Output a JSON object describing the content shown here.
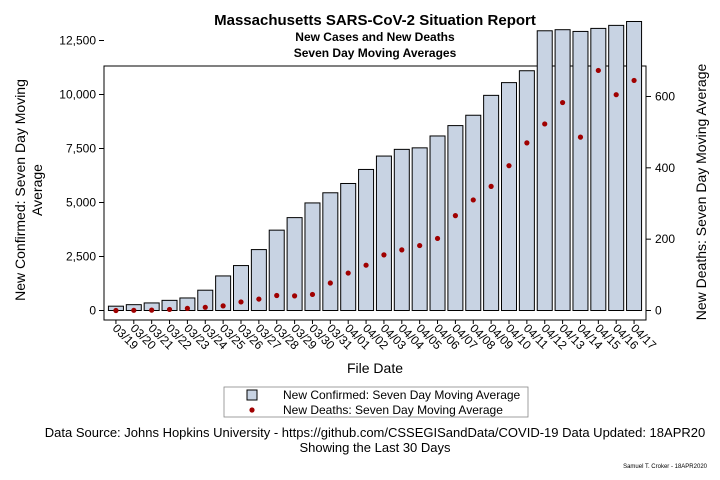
{
  "chart_data": {
    "type": "bar",
    "title": "Massachusetts SARS-CoV-2 Situation Report",
    "subtitle1": "New Cases and New Deaths",
    "subtitle2": "Seven Day Moving Averages",
    "xlabel": "File Date",
    "ylabel_left": "New Confirmed: Seven Day Moving Average",
    "ylabel_left_line1": "New Confirmed: Seven Day Moving",
    "ylabel_left_line2": "Average",
    "ylabel_right": "New Deaths: Seven Day Moving Average",
    "categories": [
      "03/19",
      "03/20",
      "03/21",
      "03/22",
      "03/23",
      "03/24",
      "03/25",
      "03/26",
      "03/27",
      "03/28",
      "03/29",
      "03/30",
      "03/31",
      "04/01",
      "04/02",
      "04/03",
      "04/04",
      "04/05",
      "04/06",
      "04/07",
      "04/08",
      "04/09",
      "04/10",
      "04/11",
      "04/12",
      "04/13",
      "04/14",
      "04/15",
      "04/16",
      "04/17"
    ],
    "series": [
      {
        "name": "New Confirmed: Seven Day Moving Average",
        "type": "bar",
        "axis": "left",
        "color": "#c8d3e3",
        "values": [
          200,
          270,
          350,
          470,
          580,
          940,
          1600,
          2080,
          2820,
          3720,
          4300,
          4980,
          5450,
          5880,
          6530,
          7150,
          7460,
          7530,
          8080,
          8560,
          9040,
          9960,
          10550,
          11100,
          12950,
          13000,
          12920,
          13060,
          13200,
          13380
        ]
      },
      {
        "name": "New Deaths: Seven Day Moving Average",
        "type": "scatter",
        "axis": "right",
        "color": "#a00000",
        "values": [
          0,
          0.5,
          1,
          3,
          6,
          9,
          13,
          24,
          32,
          42,
          41,
          45,
          77,
          105,
          127,
          156,
          170,
          182,
          202,
          266,
          310,
          348,
          406,
          470,
          523,
          583,
          486,
          673,
          605,
          645
        ]
      }
    ],
    "ylim_left": [
      0,
      14000
    ],
    "yticks_left": [
      0,
      2500,
      5000,
      7500,
      10000,
      12500
    ],
    "yticks_left_labels": [
      "0",
      "2,500",
      "5,000",
      "7,500",
      "10,000",
      "12,500"
    ],
    "ylim_right": [
      0,
      700
    ],
    "yticks_right": [
      0,
      200,
      400,
      600
    ],
    "yticks_right_labels": [
      "0",
      "200",
      "400",
      "600"
    ],
    "legend_placement": "bottom",
    "grid": false
  },
  "footer": {
    "source": "Data Source: Johns Hopkins University - https://github.com/CSSEGISandData/COVID-19 Data Updated: 18APR20",
    "showing": "Showing the Last 30 Days",
    "credit": "Samuel T. Croker - 18APR2020"
  }
}
